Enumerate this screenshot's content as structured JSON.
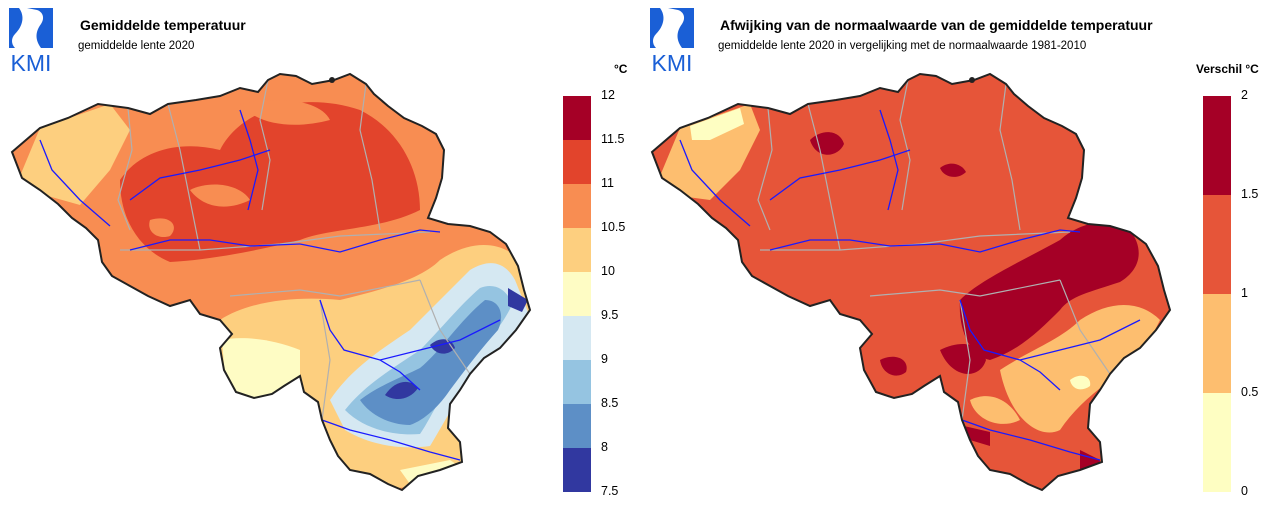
{
  "colors": {
    "logo_blue": "#1a5fd6",
    "border": "#222222",
    "rivers": "#1a1aff",
    "admin": "#b0b0b0"
  },
  "left": {
    "logo": "KMI",
    "title": "Gemiddelde temperatuur",
    "subtitle": "gemiddelde lente 2020",
    "unit": "°C",
    "legend": {
      "ticks": [
        "12",
        "11.5",
        "11",
        "10.5",
        "10",
        "9.5",
        "9",
        "8.5",
        "8",
        "7.5"
      ],
      "colors": [
        "#a50026",
        "#e2442c",
        "#f88d52",
        "#fdcf7f",
        "#fefcc4",
        "#d5e8f2",
        "#95c4e1",
        "#5d8fc6",
        "#3138a0"
      ]
    }
  },
  "right": {
    "logo": "KMI",
    "title": "Afwijking van de normaalwaarde van de gemiddelde temperatuur",
    "subtitle": "gemiddelde lente 2020 in vergelijking met de normaalwaarde 1981-2010",
    "unit": "Verschil °C",
    "legend": {
      "ticks": [
        "2",
        "1.5",
        "1",
        "0.5",
        "0"
      ],
      "colors": [
        "#a50026",
        "#e65539",
        "#fdbe6f",
        "#fefec2"
      ]
    }
  }
}
